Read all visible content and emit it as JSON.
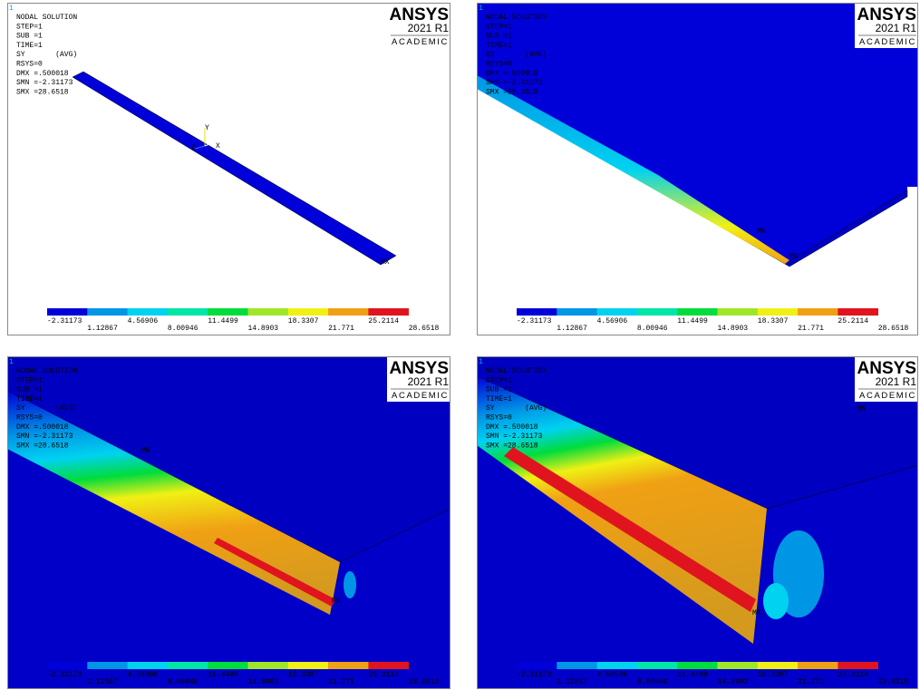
{
  "panels": [
    {
      "corner_label": "1",
      "info": [
        "NODAL SOLUTION",
        "STEP=1",
        "SUB =1",
        "TIME=1",
        "SY       (AVG)",
        "RSYS=0",
        "DMX =.500018",
        "SMN =-2.31173",
        "SMX =28.6518"
      ],
      "logo": {
        "brand": "ANSYS",
        "version": "2021 R1",
        "edition": "ACADEMIC"
      },
      "markers": [
        "Y",
        "Z",
        "X",
        "MX"
      ],
      "legend": {
        "colors": [
          "#0000d8",
          "#0096e6",
          "#00d2f0",
          "#00e6a8",
          "#00dc3c",
          "#a0e628",
          "#f0f014",
          "#f0a014",
          "#e0141e"
        ],
        "labels": [
          "-2.31173",
          "1.12867",
          "4.56906",
          "8.00946",
          "11.4499",
          "14.8903",
          "18.3307",
          "21.771",
          "25.2114",
          "28.6518"
        ]
      }
    },
    {
      "corner_label": "1",
      "info": [
        "NODAL SOLUTION",
        "STEP=1",
        "SUB =1",
        "TIME=1",
        "SY       (AVG)",
        "RSYS=0",
        "DMX =.500018",
        "SMN =-2.31173",
        "SMX =28.6518"
      ],
      "logo": {
        "brand": "ANSYS",
        "version": "2021 R1",
        "edition": "ACADEMIC"
      },
      "markers": [
        "MN",
        "MX"
      ],
      "legend": {
        "colors": [
          "#0000d8",
          "#0096e6",
          "#00d2f0",
          "#00e6a8",
          "#00dc3c",
          "#a0e628",
          "#f0f014",
          "#f0a014",
          "#e0141e"
        ],
        "labels": [
          "-2.31173",
          "1.12867",
          "4.56906",
          "8.00946",
          "11.4499",
          "14.8903",
          "18.3307",
          "21.771",
          "25.2114",
          "28.6518"
        ]
      }
    },
    {
      "corner_label": "1",
      "info": [
        "NODAL SOLUTION",
        "STEP=1",
        "SUB =1",
        "TIME=1",
        "SY       (AVG)",
        "RSYS=0",
        "DMX =.500018",
        "SMN =-2.31173",
        "SMX =28.6518"
      ],
      "logo": {
        "brand": "ANSYS",
        "version": "2021 R1",
        "edition": "ACADEMIC"
      },
      "markers": [
        "MN",
        "MX"
      ],
      "legend": {
        "colors": [
          "#0000d8",
          "#0096e6",
          "#00d2f0",
          "#00e6a8",
          "#00dc3c",
          "#a0e628",
          "#f0f014",
          "#f0a014",
          "#e0141e"
        ],
        "labels": [
          "-2.31173",
          "1.12867",
          "4.56906",
          "8.00946",
          "11.4499",
          "14.8903",
          "18.3307",
          "21.771",
          "25.2114",
          "28.6518"
        ]
      }
    },
    {
      "corner_label": "1",
      "info": [
        "NODAL SOLUTION",
        "STEP=1",
        "SUB =1",
        "TIME=1",
        "SY       (AVG)",
        "RSYS=0",
        "DMX =.500018",
        "SMN =-2.31173",
        "SMX =28.6518"
      ],
      "logo": {
        "brand": "ANSYS",
        "version": "2021 R1",
        "edition": "ACADEMIC"
      },
      "markers": [
        "MN",
        "MX"
      ],
      "legend": {
        "colors": [
          "#0000d8",
          "#0096e6",
          "#00d2f0",
          "#00e6a8",
          "#00dc3c",
          "#a0e628",
          "#f0f014",
          "#f0a014",
          "#e0141e"
        ],
        "labels": [
          "-2.31173",
          "1.12867",
          "4.56906",
          "8.00946",
          "11.4499",
          "14.8903",
          "18.3307",
          "21.771",
          "25.2114",
          "28.6518"
        ]
      }
    }
  ]
}
